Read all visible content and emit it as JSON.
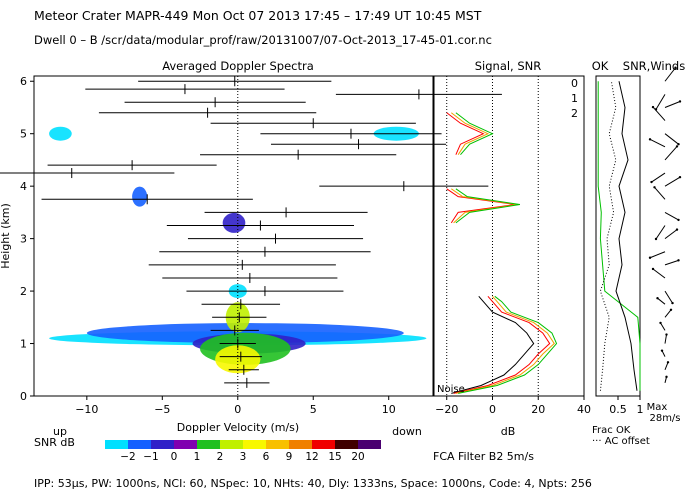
{
  "header": {
    "line1": "Meteor Crater  MAPR-449  Mon Oct 07 2013 17:45 – 17:49 UT 10:45 MST",
    "line2": "Dwell  0 –  B   /scr/data/modular_prof/raw/20131007/07-Oct-2013_17-45-01.cor.nc"
  },
  "footer": {
    "text": "IPP:  53μs,  PW: 1000ns,  NCI:  60,  NSpec: 10, NHts: 40,  Dly: 1333ns,  Space: 1000ns,  Code: 4,  Npts: 256"
  },
  "colors": {
    "scale": [
      "#00e0ff",
      "#1560ff",
      "#3020c8",
      "#8000b0",
      "#20c020",
      "#c0f000",
      "#f8f800",
      "#f8c000",
      "#f08000",
      "#f00000",
      "#400000",
      "#4a0070"
    ],
    "run0": "#ff0000",
    "run1": "#f0a000",
    "run2": "#00c000"
  },
  "chart_data": [
    {
      "type": "heatmap",
      "title": "Averaged Doppler Spectra",
      "xlabel": "Doppler Velocity (m/s)",
      "ylabel": "Height (km)",
      "x_ticks": [
        -10,
        -5,
        0,
        5,
        10
      ],
      "y_ticks": [
        0,
        1,
        2,
        3,
        4,
        5,
        6
      ],
      "xlim": [
        -13.5,
        13
      ],
      "ylim": [
        0,
        6.1
      ],
      "left_note": "up",
      "right_note": "down",
      "colorbar": {
        "label": "SNR dB",
        "ticks": [
          "−2",
          "−1",
          "0",
          "1",
          "2",
          "3",
          "6",
          "9",
          "12",
          "15",
          "20"
        ]
      },
      "spectra_blobs": [
        {
          "h": 1.1,
          "vmin": -12.5,
          "vmax": 12.5,
          "level": 0
        },
        {
          "h": 1.2,
          "vmin": -10,
          "vmax": 11,
          "level": 1
        },
        {
          "h": 1.0,
          "vmin": -3,
          "vmax": 4.5,
          "level": 2
        },
        {
          "h": 0.9,
          "vmin": -2.5,
          "vmax": 3.5,
          "level": 4
        },
        {
          "h": 0.7,
          "vmin": -1.5,
          "vmax": 1.5,
          "level": 6
        },
        {
          "h": 1.5,
          "vmin": -0.8,
          "vmax": 0.8,
          "level": 5
        },
        {
          "h": 2.0,
          "vmin": -0.6,
          "vmax": 0.6,
          "level": 0
        },
        {
          "h": 3.3,
          "vmin": -1,
          "vmax": 0.5,
          "level": 2
        },
        {
          "h": 3.8,
          "vmin": -7,
          "vmax": -6,
          "level": 1
        },
        {
          "h": 5.0,
          "vmin": -12.5,
          "vmax": -11,
          "level": 0
        },
        {
          "h": 5.0,
          "vmin": 9,
          "vmax": 12,
          "level": 0
        }
      ],
      "wind_profile": [
        {
          "h": 0.25,
          "v": 0.6,
          "err": 1.5
        },
        {
          "h": 0.5,
          "v": 0.4,
          "err": 1.0
        },
        {
          "h": 0.75,
          "v": 0.2,
          "err": 1.4
        },
        {
          "h": 1.0,
          "v": 0.0,
          "err": 1.2
        },
        {
          "h": 1.25,
          "v": -0.2,
          "err": 1.6
        },
        {
          "h": 1.5,
          "v": 0.1,
          "err": 1.8
        },
        {
          "h": 1.75,
          "v": 0.2,
          "err": 2.6
        },
        {
          "h": 2.0,
          "v": 1.8,
          "err": 5.2
        },
        {
          "h": 2.25,
          "v": 0.8,
          "err": 5.8
        },
        {
          "h": 2.5,
          "v": 0.3,
          "err": 6.2
        },
        {
          "h": 2.75,
          "v": 1.8,
          "err": 7.0
        },
        {
          "h": 3.0,
          "v": 2.5,
          "err": 5.8
        },
        {
          "h": 3.25,
          "v": 1.5,
          "err": 6.2
        },
        {
          "h": 3.5,
          "v": 3.2,
          "err": 5.4
        },
        {
          "h": 3.75,
          "v": -6.0,
          "err": 7.0
        },
        {
          "h": 4.0,
          "v": 11.0,
          "err": 5.6
        },
        {
          "h": 4.25,
          "v": -11.0,
          "err": 6.8
        },
        {
          "h": 4.4,
          "v": -7.0,
          "err": 5.6
        },
        {
          "h": 4.6,
          "v": 4.0,
          "err": 6.5
        },
        {
          "h": 4.8,
          "v": 8.0,
          "err": 5.8
        },
        {
          "h": 5.0,
          "v": 7.5,
          "err": 6.0
        },
        {
          "h": 5.2,
          "v": 5.0,
          "err": 6.8
        },
        {
          "h": 5.4,
          "v": -2.0,
          "err": 7.2
        },
        {
          "h": 5.6,
          "v": -1.5,
          "err": 6.0
        },
        {
          "h": 5.75,
          "v": 12.0,
          "err": 5.5
        },
        {
          "h": 5.85,
          "v": -3.5,
          "err": 6.6
        },
        {
          "h": 6.0,
          "v": -0.2,
          "err": 6.4
        }
      ]
    },
    {
      "type": "line",
      "title": "Signal, SNR",
      "xlabel": "dB",
      "x_ticks": [
        -20,
        0,
        20,
        40
      ],
      "xlim": [
        -26,
        40
      ],
      "ylim": [
        0,
        6.1
      ],
      "noise_label": "Noise",
      "legend": [
        "0",
        "1",
        "2"
      ],
      "series": [
        {
          "name": "Noise",
          "h": [
            0.05,
            0.2,
            0.4,
            0.6,
            0.8,
            1.0,
            1.2,
            1.4,
            1.6,
            1.8,
            1.9
          ],
          "db": [
            -18,
            -5,
            5,
            10,
            14,
            18,
            15,
            10,
            0,
            -4,
            -6
          ]
        },
        {
          "name": "0",
          "h": [
            0.05,
            0.2,
            0.4,
            0.6,
            0.8,
            1.0,
            1.2,
            1.4,
            1.6,
            1.8,
            1.9
          ],
          "db": [
            -17,
            -2,
            10,
            16,
            20,
            25,
            22,
            16,
            4,
            0,
            -2
          ]
        },
        {
          "name": "1",
          "h": [
            0.05,
            0.2,
            0.4,
            0.6,
            0.8,
            1.0,
            1.2,
            1.4,
            1.6,
            1.8,
            1.9
          ],
          "db": [
            -16,
            0,
            12,
            18,
            22,
            27,
            24,
            18,
            6,
            2,
            0
          ]
        },
        {
          "name": "2",
          "h": [
            0.05,
            0.2,
            0.4,
            0.6,
            0.8,
            1.0,
            1.2,
            1.4,
            1.6,
            1.8,
            1.9
          ],
          "db": [
            -15,
            2,
            14,
            20,
            24,
            28,
            26,
            20,
            8,
            4,
            1
          ]
        },
        {
          "name": "0 upper",
          "h": [
            3.3,
            3.5,
            3.65,
            3.8,
            3.95
          ],
          "db": [
            -18,
            -15,
            10,
            -15,
            -20
          ]
        },
        {
          "name": "1 upper",
          "h": [
            3.3,
            3.5,
            3.65,
            3.8,
            3.95
          ],
          "db": [
            -17,
            -12,
            11,
            -13,
            -18
          ]
        },
        {
          "name": "2 upper",
          "h": [
            3.3,
            3.5,
            3.65,
            3.8,
            3.95
          ],
          "db": [
            -16,
            -10,
            12,
            -11,
            -16
          ]
        },
        {
          "name": "0 top",
          "h": [
            4.6,
            4.8,
            5.0,
            5.2,
            5.4
          ],
          "db": [
            -16,
            -14,
            -4,
            -14,
            -20
          ]
        },
        {
          "name": "1 top",
          "h": [
            4.6,
            4.8,
            5.0,
            5.2,
            5.4
          ],
          "db": [
            -15,
            -12,
            -2,
            -12,
            -18
          ]
        },
        {
          "name": "2 top",
          "h": [
            4.6,
            4.8,
            5.0,
            5.2,
            5.4
          ],
          "db": [
            -14,
            -10,
            0,
            -10,
            -16
          ]
        }
      ]
    },
    {
      "type": "line",
      "title": "OK",
      "xlabel": "Frac OK",
      "note": "··· AC offset",
      "x_ticks": [
        0.5,
        1
      ],
      "series": [
        {
          "name": "frac_ok",
          "h": [
            0.1,
            0.5,
            1.0,
            1.5,
            2.0,
            2.5,
            3.0,
            3.5,
            4.0,
            4.5,
            5.0,
            5.5,
            6.0
          ],
          "values": [
            1,
            1,
            1,
            0.95,
            0.2,
            0.15,
            0.1,
            0.12,
            0.05,
            0.05,
            0.05,
            0.05,
            0.05
          ]
        },
        {
          "name": "ac_offset",
          "h": [
            0.1,
            0.5,
            1.0,
            1.5,
            2.0,
            2.5,
            3.0,
            3.5,
            4.0,
            4.5,
            5.0,
            5.5,
            6.0
          ],
          "values": [
            0.1,
            0.15,
            0.2,
            0.3,
            0.1,
            0.3,
            0.25,
            0.4,
            0.3,
            0.45,
            0.3,
            0.45,
            0.35
          ]
        }
      ]
    },
    {
      "type": "line",
      "title": "SNR,Winds",
      "max_label": "Max",
      "max_value": "28m/s",
      "series": [
        {
          "name": "snr",
          "h": [
            0.1,
            0.5,
            1.0,
            1.5,
            2.0,
            2.5,
            3.0,
            3.5,
            4.0,
            4.5,
            5.0,
            5.5,
            6.0
          ],
          "values": [
            0.9,
            0.8,
            0.7,
            0.5,
            0.2,
            0.4,
            0.3,
            0.5,
            0.3,
            0.6,
            0.4,
            0.5,
            0.3
          ]
        }
      ],
      "winds": [
        {
          "h": 0.25,
          "u": 1,
          "v": 4
        },
        {
          "h": 0.5,
          "u": 2,
          "v": 5
        },
        {
          "h": 0.75,
          "u": -2,
          "v": 4
        },
        {
          "h": 1.0,
          "u": 1,
          "v": 6
        },
        {
          "h": 1.25,
          "u": -3,
          "v": 5
        },
        {
          "h": 1.5,
          "u": 4,
          "v": 5
        },
        {
          "h": 1.75,
          "u": -5,
          "v": 4
        },
        {
          "h": 2.0,
          "u": 5,
          "v": -8
        },
        {
          "h": 2.25,
          "u": -8,
          "v": 6
        },
        {
          "h": 2.5,
          "u": 9,
          "v": 3
        },
        {
          "h": 2.75,
          "u": -10,
          "v": -4
        },
        {
          "h": 3.0,
          "u": 8,
          "v": 6
        },
        {
          "h": 3.25,
          "u": -6,
          "v": -9
        },
        {
          "h": 3.5,
          "u": 9,
          "v": -5
        },
        {
          "h": 3.75,
          "u": -7,
          "v": 8
        },
        {
          "h": 4.0,
          "u": 10,
          "v": 6
        },
        {
          "h": 4.25,
          "u": -9,
          "v": -6
        },
        {
          "h": 4.5,
          "u": 8,
          "v": 9
        },
        {
          "h": 4.75,
          "u": -10,
          "v": 5
        },
        {
          "h": 5.0,
          "u": 9,
          "v": -7
        },
        {
          "h": 5.25,
          "u": -8,
          "v": 9
        },
        {
          "h": 5.5,
          "u": 10,
          "v": 4
        },
        {
          "h": 5.75,
          "u": -6,
          "v": -10
        },
        {
          "h": 6.0,
          "u": 7,
          "v": 9
        }
      ]
    }
  ],
  "filter": {
    "text": "FCA Filter B2  5m/s"
  }
}
